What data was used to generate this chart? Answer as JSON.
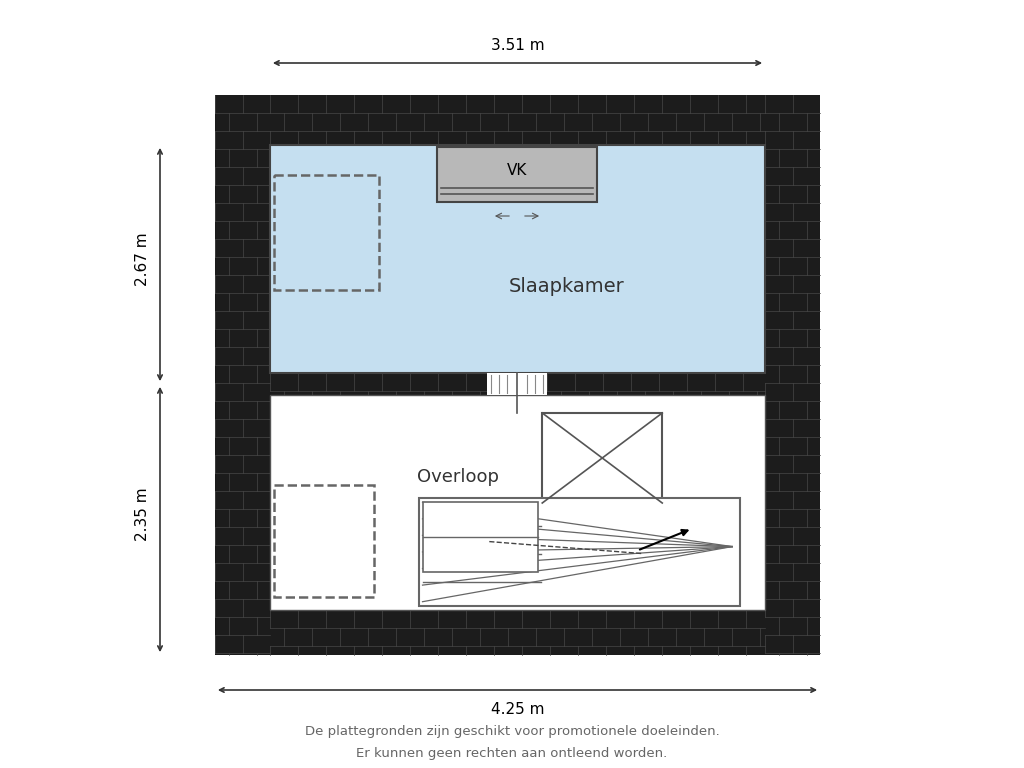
{
  "bg_color": "#ffffff",
  "wall_dark": "#1c1c1c",
  "brick_line_color": "#555555",
  "room_fill_slaapkamer": "#c5dff0",
  "room_fill_overloop": "#ffffff",
  "dim_top": "3.51 m",
  "dim_bottom": "4.25 m",
  "dim_left_top": "2.67 m",
  "dim_left_bottom": "2.35 m",
  "label_slaapkamer": "Slaapkamer",
  "label_overloop": "Overloop",
  "label_vk": "VK",
  "footer_line1": "De plattegronden zijn geschikt voor promotionele doeleinden.",
  "footer_line2": "Er kunnen geen rechten aan ontleend worden."
}
